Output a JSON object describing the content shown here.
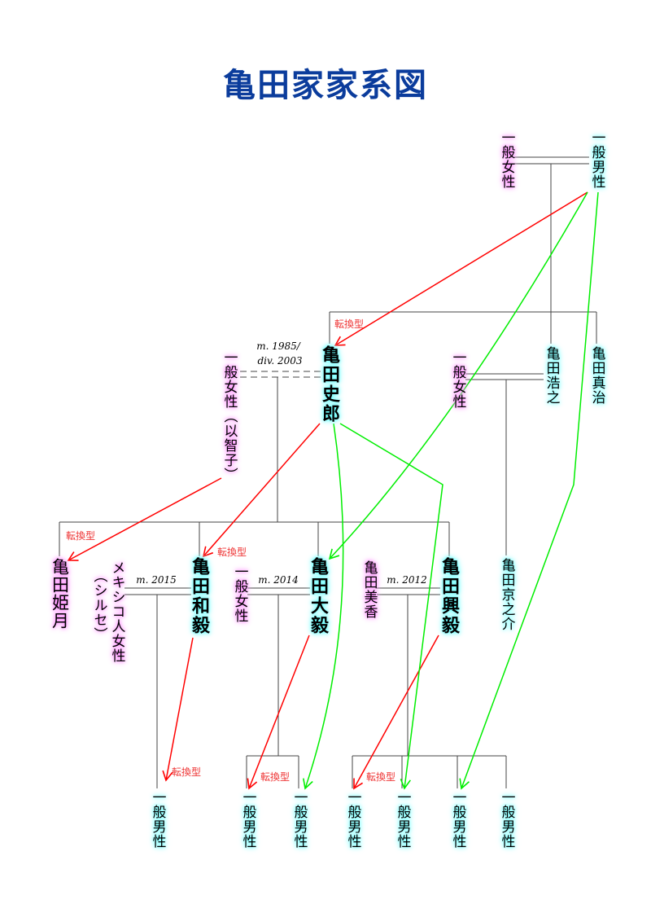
{
  "title": "亀田家家系図",
  "colors": {
    "title": "#0b3c9c",
    "lineage": "#000000",
    "red_arrow": "#ff0000",
    "green_arrow": "#00e000",
    "male_glow": "#66ffff",
    "female_glow": "#ff66ff"
  },
  "people": {
    "gp_wife": "一般女性",
    "gp_husband": "一般男性",
    "shiro": "亀田史郎",
    "ex_wife": "一般女性（以智子）",
    "hiroyuki_wife": "一般女性",
    "hiroyuki": "亀田浩之",
    "shinji": "亀田真治",
    "himezuki": "亀田姫月",
    "tomoki_wife": "メキシコ人女性",
    "tomoki_wife_name": "（シルセ）",
    "tomoki": "亀田和毅",
    "daiki_wife": "一般女性",
    "daiki": "亀田大毅",
    "koki_wife": "亀田美香",
    "koki": "亀田興毅",
    "kyonosuke": "亀田京之介",
    "grandchildren": [
      "一般男性",
      "一般男性",
      "一般男性",
      "一般男性",
      "一般男性",
      "一般男性",
      "一般男性"
    ]
  },
  "marriages": {
    "shiro": [
      "m. 1985/",
      "div. 2003"
    ],
    "tomoki": "m. 2015",
    "daiki": "m. 2014",
    "koki": "m. 2012"
  },
  "arrow_label": "転換型",
  "arrow_labels": [
    "転換型",
    "転換型",
    "転換型",
    "転換型",
    "転換型",
    "転換型"
  ]
}
